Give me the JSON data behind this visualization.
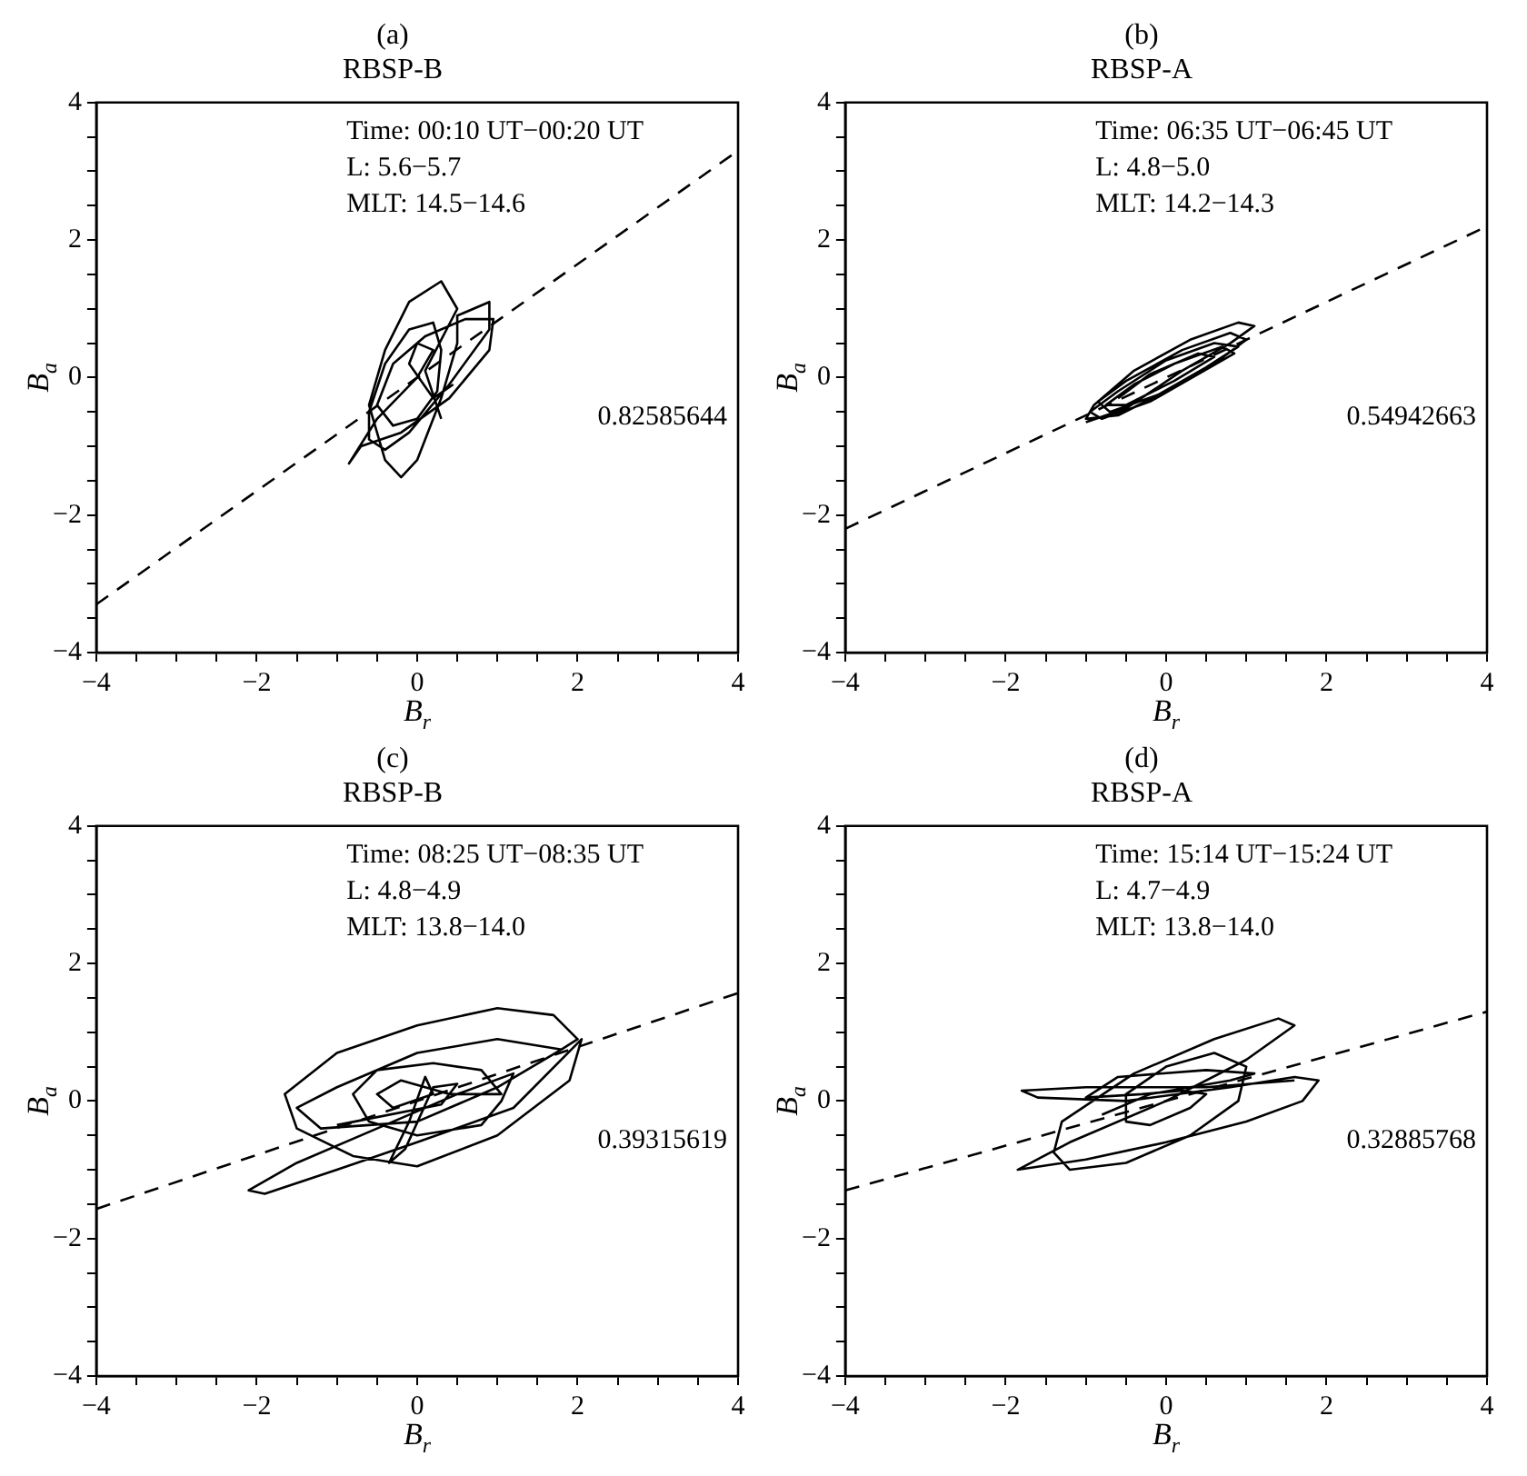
{
  "chart_data": [
    {
      "type": "line",
      "title": "(a)",
      "subtitle": "RBSP-B",
      "xlabel": "B$_{r}$",
      "ylabel": "B$_{a}$",
      "xlim": [
        -4,
        4
      ],
      "ylim": [
        -4,
        4
      ],
      "xticks": [
        -4,
        {
          "value": -3.5,
          "label": null
        },
        {
          "value": -3,
          "label": null
        },
        {
          "value": -2.5,
          "label": null
        },
        -2,
        {
          "value": -1.5,
          "label": null
        },
        {
          "value": -1,
          "label": null
        },
        {
          "value": -0.5,
          "label": null
        },
        0,
        {
          "value": 0.5,
          "label": null
        },
        {
          "value": 1,
          "label": null
        },
        {
          "value": 1.5,
          "label": null
        },
        2,
        {
          "value": 2.5,
          "label": null
        },
        {
          "value": 3,
          "label": null
        },
        {
          "value": 3.5,
          "label": null
        },
        4
      ],
      "yticks": [
        -4,
        {
          "value": -3.5,
          "label": null
        },
        {
          "value": -3,
          "label": null
        },
        {
          "value": -2.5,
          "label": null
        },
        -2,
        {
          "value": -1.5,
          "label": null
        },
        {
          "value": -1,
          "label": null
        },
        {
          "value": -0.5,
          "label": null
        },
        0,
        {
          "value": 0.5,
          "label": null
        },
        {
          "value": 1,
          "label": null
        },
        {
          "value": 1.5,
          "label": null
        },
        2,
        {
          "value": 2.5,
          "label": null
        },
        {
          "value": 3,
          "label": null
        },
        {
          "value": 3.5,
          "label": null
        },
        4
      ],
      "grid": false,
      "legend": false,
      "marker": "none",
      "annotations": [
        "Time: 00:10 UT−00:20 UT",
        "L: 5.6−5.7",
        "MLT: 14.5−14.6",
        "0.82585644"
      ],
      "series": [
        {
          "type": "line",
          "color": "#000000",
          "line_style": "dashed",
          "x": [
            -4,
            4
          ],
          "values": [
            -3.3,
            3.3
          ]
        },
        {
          "type": "line",
          "color": "#000000",
          "x": [
            0.3,
            0.1,
            0.5,
            0.3,
            -0.1,
            -0.4,
            -0.6,
            -0.4,
            -0.2,
            0.0,
            0.3,
            0.5,
            0.5,
            0.9,
            0.9,
            0.4,
            -0.1,
            -0.4,
            -0.6,
            -0.6,
            -0.4,
            -0.1,
            0.2,
            0.3,
            0.25,
            0.0,
            -0.3,
            -0.5,
            -0.3,
            0.1,
            0.6,
            0.95,
            0.9,
            0.4,
            -0.2,
            -0.7,
            -0.85,
            -0.5,
            0.0,
            0.2,
            0.0,
            -0.1,
            0.2,
            0.45
          ],
          "values": [
            -0.6,
            0.1,
            1.0,
            1.4,
            1.1,
            0.4,
            -0.4,
            -1.2,
            -1.45,
            -1.2,
            -0.3,
            0.5,
            0.9,
            1.1,
            0.7,
            -0.1,
            -0.8,
            -1.05,
            -0.9,
            -0.5,
            0.2,
            0.7,
            0.8,
            0.4,
            -0.2,
            -0.6,
            -0.7,
            -0.4,
            0.2,
            0.6,
            0.85,
            0.85,
            0.4,
            -0.3,
            -0.8,
            -1.0,
            -1.25,
            -0.6,
            0.0,
            0.4,
            0.5,
            0.2,
            -0.3,
            -0.1
          ]
        }
      ]
    },
    {
      "type": "line",
      "title": "(b)",
      "subtitle": "RBSP-A",
      "xlabel": "B$_{r}$",
      "ylabel": "B$_{a}$",
      "xlim": [
        -4,
        4
      ],
      "ylim": [
        -4,
        4
      ],
      "xticks": [
        -4,
        {
          "value": -3.5,
          "label": null
        },
        {
          "value": -3,
          "label": null
        },
        {
          "value": -2.5,
          "label": null
        },
        -2,
        {
          "value": -1.5,
          "label": null
        },
        {
          "value": -1,
          "label": null
        },
        {
          "value": -0.5,
          "label": null
        },
        0,
        {
          "value": 0.5,
          "label": null
        },
        {
          "value": 1,
          "label": null
        },
        {
          "value": 1.5,
          "label": null
        },
        2,
        {
          "value": 2.5,
          "label": null
        },
        {
          "value": 3,
          "label": null
        },
        {
          "value": 3.5,
          "label": null
        },
        4
      ],
      "yticks": [
        -4,
        {
          "value": -3.5,
          "label": null
        },
        {
          "value": -3,
          "label": null
        },
        {
          "value": -2.5,
          "label": null
        },
        -2,
        {
          "value": -1.5,
          "label": null
        },
        {
          "value": -1,
          "label": null
        },
        {
          "value": -0.5,
          "label": null
        },
        0,
        {
          "value": 0.5,
          "label": null
        },
        {
          "value": 1,
          "label": null
        },
        {
          "value": 1.5,
          "label": null
        },
        2,
        {
          "value": 2.5,
          "label": null
        },
        {
          "value": 3,
          "label": null
        },
        {
          "value": 3.5,
          "label": null
        },
        4
      ],
      "grid": false,
      "legend": false,
      "marker": "none",
      "annotations": [
        "Time: 06:35 UT−06:45 UT",
        "L: 4.8−5.0",
        "MLT: 14.2−14.3",
        "0.54942663"
      ],
      "series": [
        {
          "type": "line",
          "color": "#000000",
          "line_style": "dashed",
          "x": [
            -4,
            4
          ],
          "values": [
            -2.2,
            2.2
          ]
        },
        {
          "type": "line",
          "color": "#000000",
          "x": [
            -1.0,
            -0.5,
            0.2,
            0.8,
            1.1,
            0.9,
            0.3,
            -0.4,
            -0.9,
            -1.0,
            -0.6,
            0.0,
            0.6,
            1.0,
            0.8,
            0.2,
            -0.5,
            -0.85,
            -0.7,
            -0.1,
            0.5,
            0.9,
            0.6,
            0.0,
            -0.6,
            -0.95,
            -0.8,
            -0.2,
            0.4,
            0.85,
            0.7,
            0.1,
            -0.4,
            -0.75,
            -0.5,
            0.1,
            0.6,
            0.4,
            -0.2,
            -0.6
          ],
          "values": [
            -0.65,
            -0.45,
            0.1,
            0.5,
            0.75,
            0.8,
            0.55,
            0.1,
            -0.4,
            -0.6,
            -0.55,
            -0.2,
            0.2,
            0.55,
            0.65,
            0.4,
            -0.05,
            -0.35,
            -0.5,
            -0.25,
            0.15,
            0.45,
            0.5,
            0.25,
            -0.2,
            -0.5,
            -0.6,
            -0.35,
            0.05,
            0.35,
            0.45,
            0.2,
            -0.1,
            -0.4,
            -0.4,
            -0.05,
            0.3,
            0.35,
            0.05,
            -0.3
          ]
        }
      ]
    },
    {
      "type": "line",
      "title": "(c)",
      "subtitle": "RBSP-B",
      "xlabel": "B$_{r}$",
      "ylabel": "B$_{a}$",
      "xlim": [
        -4,
        4
      ],
      "ylim": [
        -4,
        4
      ],
      "xticks": [
        -4,
        {
          "value": -3.5,
          "label": null
        },
        {
          "value": -3,
          "label": null
        },
        {
          "value": -2.5,
          "label": null
        },
        -2,
        {
          "value": -1.5,
          "label": null
        },
        {
          "value": -1,
          "label": null
        },
        {
          "value": -0.5,
          "label": null
        },
        0,
        {
          "value": 0.5,
          "label": null
        },
        {
          "value": 1,
          "label": null
        },
        {
          "value": 1.5,
          "label": null
        },
        2,
        {
          "value": 2.5,
          "label": null
        },
        {
          "value": 3,
          "label": null
        },
        {
          "value": 3.5,
          "label": null
        },
        4
      ],
      "yticks": [
        -4,
        {
          "value": -3.5,
          "label": null
        },
        {
          "value": -3,
          "label": null
        },
        {
          "value": -2.5,
          "label": null
        },
        -2,
        {
          "value": -1.5,
          "label": null
        },
        {
          "value": -1,
          "label": null
        },
        {
          "value": -0.5,
          "label": null
        },
        0,
        {
          "value": 0.5,
          "label": null
        },
        {
          "value": 1,
          "label": null
        },
        {
          "value": 1.5,
          "label": null
        },
        2,
        {
          "value": 2.5,
          "label": null
        },
        {
          "value": 3,
          "label": null
        },
        {
          "value": 3.5,
          "label": null
        },
        4
      ],
      "grid": false,
      "legend": false,
      "marker": "none",
      "annotations": [
        "Time: 08:25 UT−08:35 UT",
        "L: 4.8−4.9",
        "MLT: 13.8−14.0",
        "0.39315619"
      ],
      "series": [
        {
          "type": "line",
          "color": "#000000",
          "line_style": "dashed",
          "x": [
            -4,
            4
          ],
          "values": [
            -1.57,
            1.57
          ]
        },
        {
          "type": "line",
          "color": "#000000",
          "x": [
            1.8,
            1.0,
            0.0,
            -1.0,
            -1.5,
            -1.2,
            0.0,
            1.0,
            1.8,
            2.0,
            1.7,
            1.0,
            0.0,
            -1.0,
            -1.65,
            -1.5,
            -0.8,
            0.0,
            1.0,
            1.9,
            2.05,
            1.2,
            0.0,
            -1.0,
            -1.9,
            -2.1,
            -1.5,
            -0.5,
            0.5,
            1.2,
            1.05,
            0.8,
            0.0,
            -0.6,
            -0.8,
            -0.5,
            0.2,
            0.8,
            1.05,
            0.4,
            -0.2,
            -0.5,
            -0.3,
            0.2,
            0.1,
            -0.1,
            -0.35,
            -0.15,
            0.2,
            0.5,
            0.3,
            -1.0
          ],
          "values": [
            0.75,
            0.9,
            0.7,
            0.2,
            -0.1,
            -0.4,
            -0.3,
            0.2,
            0.75,
            0.9,
            1.25,
            1.35,
            1.1,
            0.7,
            0.1,
            -0.4,
            -0.8,
            -0.95,
            -0.5,
            0.3,
            0.9,
            -0.1,
            -0.6,
            -1.0,
            -1.35,
            -1.3,
            -0.9,
            -0.4,
            0.1,
            0.4,
            0.0,
            -0.35,
            -0.5,
            -0.3,
            0.1,
            0.45,
            0.55,
            0.45,
            0.1,
            0.1,
            0.3,
            0.1,
            -0.1,
            0.1,
            0.35,
            -0.3,
            -0.9,
            -0.7,
            0.2,
            0.25,
            -0.05,
            -0.35
          ]
        }
      ]
    },
    {
      "type": "line",
      "title": "(d)",
      "subtitle": "RBSP-A",
      "xlabel": "B$_{r}$",
      "ylabel": "B$_{a}$",
      "xlim": [
        -4,
        4
      ],
      "ylim": [
        -4,
        4
      ],
      "xticks": [
        -4,
        {
          "value": -3.5,
          "label": null
        },
        {
          "value": -3,
          "label": null
        },
        {
          "value": -2.5,
          "label": null
        },
        -2,
        {
          "value": -1.5,
          "label": null
        },
        {
          "value": -1,
          "label": null
        },
        {
          "value": -0.5,
          "label": null
        },
        0,
        {
          "value": 0.5,
          "label": null
        },
        {
          "value": 1,
          "label": null
        },
        {
          "value": 1.5,
          "label": null
        },
        2,
        {
          "value": 2.5,
          "label": null
        },
        {
          "value": 3,
          "label": null
        },
        {
          "value": 3.5,
          "label": null
        },
        4
      ],
      "yticks": [
        -4,
        {
          "value": -3.5,
          "label": null
        },
        {
          "value": -3,
          "label": null
        },
        {
          "value": -2.5,
          "label": null
        },
        -2,
        {
          "value": -1.5,
          "label": null
        },
        {
          "value": -1,
          "label": null
        },
        {
          "value": -0.5,
          "label": null
        },
        0,
        {
          "value": 0.5,
          "label": null
        },
        {
          "value": 1,
          "label": null
        },
        {
          "value": 1.5,
          "label": null
        },
        2,
        {
          "value": 2.5,
          "label": null
        },
        {
          "value": 3,
          "label": null
        },
        {
          "value": 3.5,
          "label": null
        },
        4
      ],
      "grid": false,
      "legend": false,
      "marker": "none",
      "annotations": [
        "Time: 15:14 UT−15:24 UT",
        "L: 4.7−4.9",
        "MLT: 13.8−14.0",
        "0.32885768"
      ],
      "series": [
        {
          "type": "line",
          "color": "#000000",
          "line_style": "dashed",
          "x": [
            -4,
            4
          ],
          "values": [
            -1.3,
            1.3
          ]
        },
        {
          "type": "line",
          "color": "#000000",
          "x": [
            1.6,
            0.5,
            -1.0,
            -1.8,
            -1.6,
            -0.5,
            0.8,
            1.6,
            1.9,
            1.7,
            1.0,
            0.0,
            -1.0,
            -1.85,
            -1.2,
            0.0,
            1.0,
            1.6,
            1.4,
            0.6,
            -0.4,
            -1.3,
            -1.4,
            -1.2,
            -0.5,
            0.3,
            0.9,
            1.0,
            0.6,
            0.0,
            -0.5,
            -0.5,
            -0.2,
            0.3,
            0.5,
            0.2,
            -0.3,
            -1.0,
            -0.6,
            0.5,
            1.1,
            0.8,
            -0.2,
            -0.8
          ],
          "values": [
            0.3,
            0.2,
            0.2,
            0.15,
            0.05,
            0.0,
            0.2,
            0.35,
            0.3,
            0.0,
            -0.3,
            -0.6,
            -0.85,
            -1.0,
            -0.6,
            0.0,
            0.6,
            1.1,
            1.2,
            0.9,
            0.4,
            -0.3,
            -0.75,
            -1.0,
            -0.9,
            -0.5,
            0.0,
            0.5,
            0.7,
            0.5,
            0.1,
            -0.3,
            -0.35,
            -0.1,
            0.1,
            0.15,
            0.1,
            0.05,
            0.35,
            0.45,
            0.4,
            0.3,
            0.1,
            -0.2
          ]
        }
      ]
    }
  ]
}
